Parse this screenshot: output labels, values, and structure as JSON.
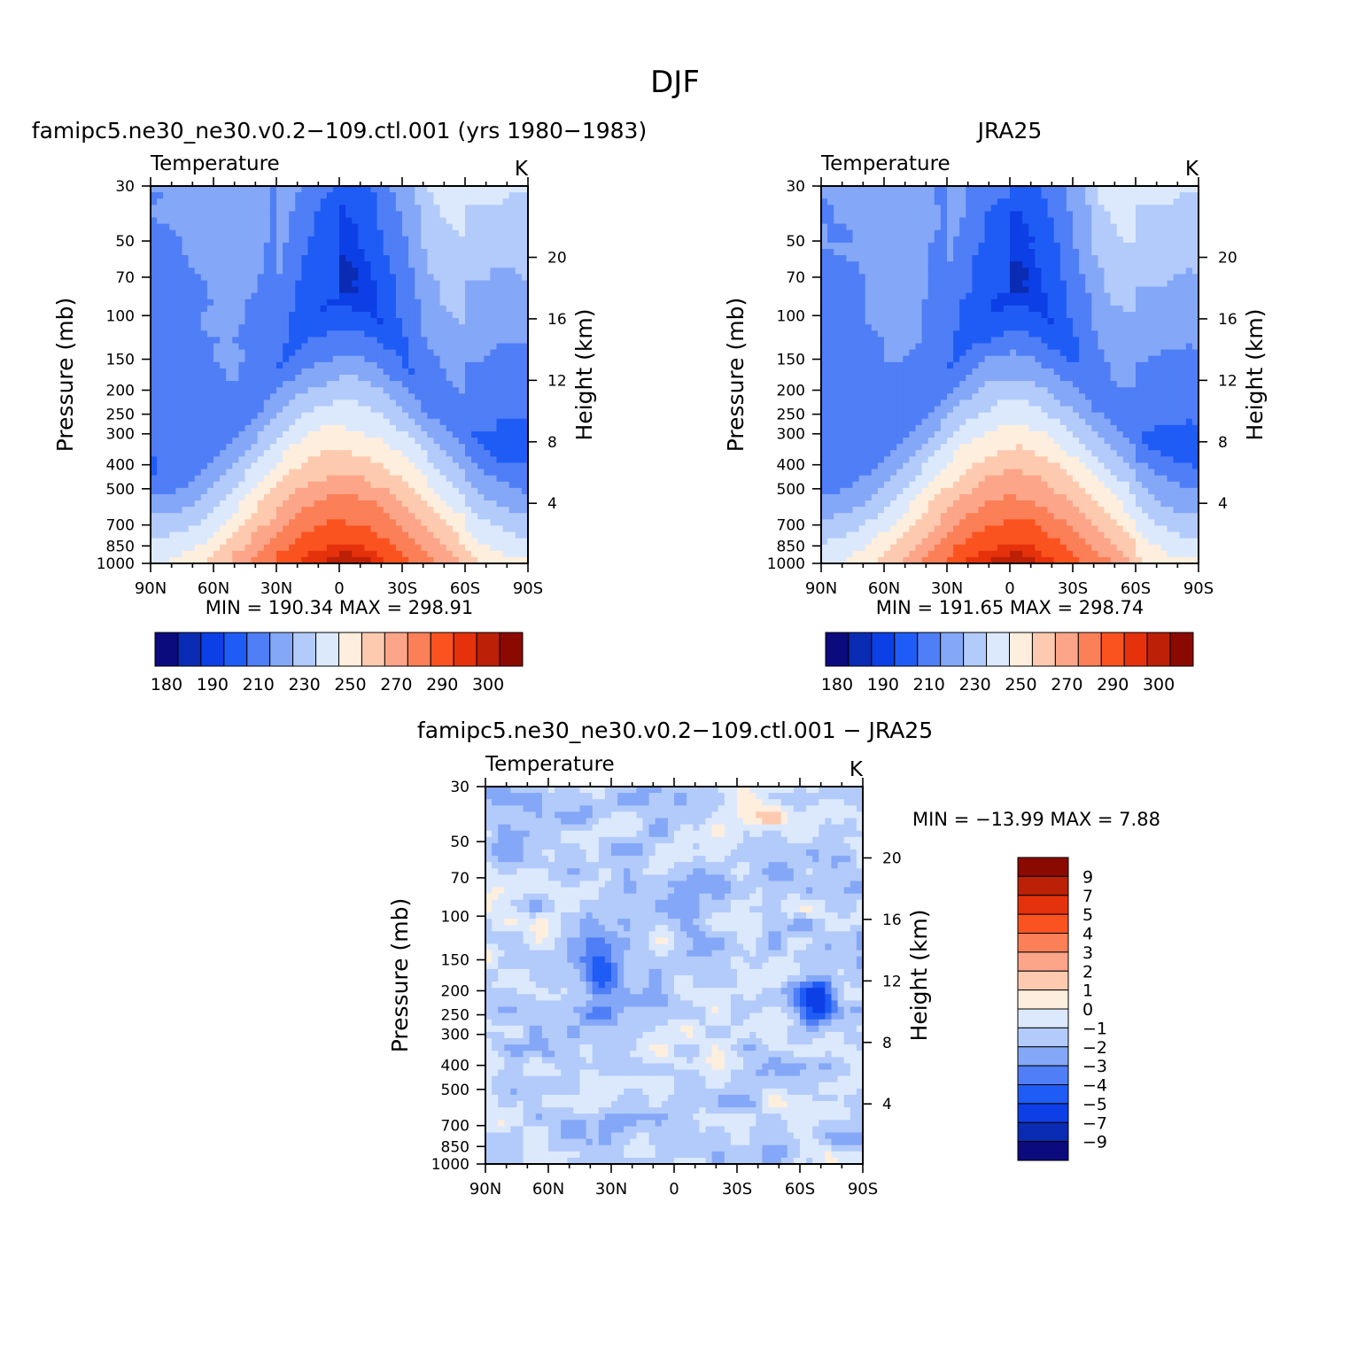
{
  "figure_title": "DJF",
  "colors": {
    "temperature_palette": [
      "#0b0b7e",
      "#0a2bb3",
      "#0d3fe6",
      "#1f5cf5",
      "#4f7ef6",
      "#84a7f7",
      "#b3cbfa",
      "#dce9fd",
      "#feeedd",
      "#fdcab0",
      "#fca589",
      "#fb7f57",
      "#fa531f",
      "#e5320d",
      "#bc2006",
      "#8a0a02"
    ],
    "diff_palette": [
      "#0b0b7e",
      "#0a2bb3",
      "#0d3fe6",
      "#1f5cf5",
      "#4f7ef6",
      "#84a7f7",
      "#b3cbfa",
      "#dce9fd",
      "#feeedd",
      "#fdcab0",
      "#fca589",
      "#fb7f57",
      "#fa531f",
      "#e5320d",
      "#bc2006",
      "#8a0a02"
    ],
    "missing": "#ffffff"
  },
  "chart_data": [
    {
      "type": "heatmap",
      "panel": "model",
      "title": "famipc5.ne30_ne30.v0.2−109.ctl.001  (yrs  1980−1983)",
      "left_string": "Temperature",
      "right_string": "K",
      "xlabel": "",
      "ylabel": "Pressure  (mb)",
      "y2label": "Height  (km)",
      "x_tick_labels": [
        "90N",
        "60N",
        "30N",
        "0",
        "30S",
        "60S",
        "90S"
      ],
      "x_ticks": [
        90,
        60,
        30,
        0,
        -30,
        -60,
        -90
      ],
      "y_tick_labels": [
        "30",
        "50",
        "70",
        "100",
        "150",
        "200",
        "250",
        "300",
        "400",
        "500",
        "700",
        "850",
        "1000"
      ],
      "y_ticks": [
        30,
        50,
        70,
        100,
        150,
        200,
        250,
        300,
        400,
        500,
        700,
        850,
        1000
      ],
      "y2_tick_labels": [
        "20",
        "16",
        "12",
        "8",
        "4"
      ],
      "y2_ticks_km": [
        20,
        16,
        12,
        8,
        4
      ],
      "xlim": [
        90,
        -90
      ],
      "ylim": [
        1000,
        30
      ],
      "min_max_text": "MIN  =  190.34    MAX  =  298.91",
      "min": 190.34,
      "max": 298.91,
      "colorbar_orientation": "horizontal",
      "colorbar_labels": [
        "180",
        "190",
        "210",
        "230",
        "250",
        "270",
        "290",
        "300"
      ],
      "levels": [
        180,
        185,
        190,
        200,
        210,
        220,
        230,
        240,
        250,
        260,
        270,
        280,
        290,
        295,
        300
      ]
    },
    {
      "type": "heatmap",
      "panel": "obs",
      "title": "JRA25",
      "left_string": "Temperature",
      "right_string": "K",
      "xlabel": "",
      "ylabel": "Pressure  (mb)",
      "y2label": "Height  (km)",
      "x_tick_labels": [
        "90N",
        "60N",
        "30N",
        "0",
        "30S",
        "60S",
        "90S"
      ],
      "x_ticks": [
        90,
        60,
        30,
        0,
        -30,
        -60,
        -90
      ],
      "y_tick_labels": [
        "30",
        "50",
        "70",
        "100",
        "150",
        "200",
        "250",
        "300",
        "400",
        "500",
        "700",
        "850",
        "1000"
      ],
      "y_ticks": [
        30,
        50,
        70,
        100,
        150,
        200,
        250,
        300,
        400,
        500,
        700,
        850,
        1000
      ],
      "y2_tick_labels": [
        "20",
        "16",
        "12",
        "8",
        "4"
      ],
      "y2_ticks_km": [
        20,
        16,
        12,
        8,
        4
      ],
      "xlim": [
        90,
        -90
      ],
      "ylim": [
        1000,
        30
      ],
      "min_max_text": "MIN  =  191.65    MAX  =  298.74",
      "min": 191.65,
      "max": 298.74,
      "colorbar_orientation": "horizontal",
      "colorbar_labels": [
        "180",
        "190",
        "210",
        "230",
        "250",
        "270",
        "290",
        "300"
      ],
      "levels": [
        180,
        185,
        190,
        200,
        210,
        220,
        230,
        240,
        250,
        260,
        270,
        280,
        290,
        295,
        300
      ]
    },
    {
      "type": "heatmap",
      "panel": "diff",
      "title": "famipc5.ne30_ne30.v0.2−109.ctl.001  −  JRA25",
      "left_string": "Temperature",
      "right_string": "K",
      "xlabel": "",
      "ylabel": "Pressure  (mb)",
      "y2label": "Height  (km)",
      "x_tick_labels": [
        "90N",
        "60N",
        "30N",
        "0",
        "30S",
        "60S",
        "90S"
      ],
      "x_ticks": [
        90,
        60,
        30,
        0,
        -30,
        -60,
        -90
      ],
      "y_tick_labels": [
        "30",
        "50",
        "70",
        "100",
        "150",
        "200",
        "250",
        "300",
        "400",
        "500",
        "700",
        "850",
        "1000"
      ],
      "y_ticks": [
        30,
        50,
        70,
        100,
        150,
        200,
        250,
        300,
        400,
        500,
        700,
        850,
        1000
      ],
      "y2_tick_labels": [
        "20",
        "16",
        "12",
        "8",
        "4"
      ],
      "y2_ticks_km": [
        20,
        16,
        12,
        8,
        4
      ],
      "xlim": [
        90,
        -90
      ],
      "ylim": [
        1000,
        30
      ],
      "min_max_text": "MIN  =  −13.99    MAX  =      7.88",
      "min": -13.99,
      "max": 7.88,
      "colorbar_orientation": "vertical",
      "colorbar_labels": [
        "9",
        "7",
        "5",
        "4",
        "3",
        "2",
        "1",
        "0",
        "−1",
        "−2",
        "−3",
        "−4",
        "−5",
        "−7",
        "−9"
      ],
      "levels": [
        -9,
        -7,
        -5,
        -4,
        -3,
        -2,
        -1,
        0,
        1,
        2,
        3,
        4,
        5,
        7,
        9
      ]
    }
  ]
}
